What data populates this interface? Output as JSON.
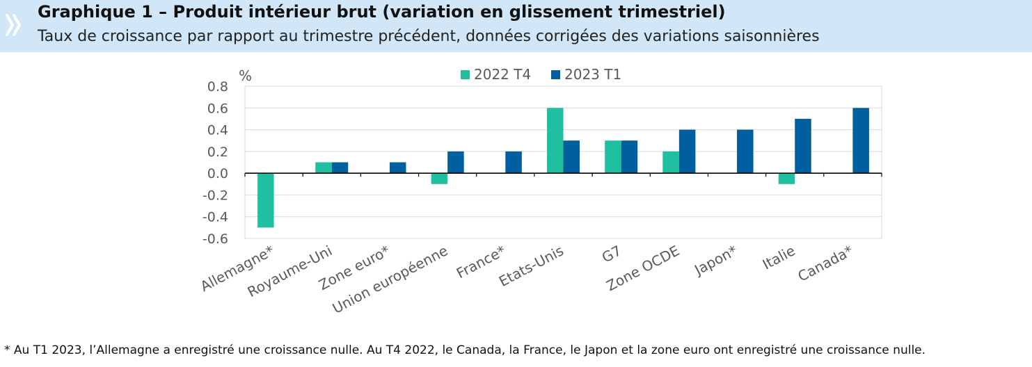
{
  "header": {
    "title": "Graphique 1 – Produit intérieur brut (variation en glissement trimestriel)",
    "subtitle": "Taux de croissance par rapport au trimestre précédent, données corrigées des variations saisonnières",
    "icon": "double-chevron-icon"
  },
  "footnote": "* Au T1 2023, l’Allemagne a enregistré une croissance nulle. Au T4 2022, le Canada, la France, le Japon et la zone euro ont enregistré une croissance nulle.",
  "colors": {
    "header_bg": "#d1e7f7",
    "series_2022T4": "#1fbfa0",
    "series_2023T1": "#005f9e",
    "grid": "#d9d9d9",
    "axis_text": "#595959"
  },
  "chart_data": {
    "type": "bar",
    "ylabel": "%",
    "ylim": [
      -0.6,
      0.8
    ],
    "yticks": [
      "0.8",
      "0.6",
      "0.4",
      "0.2",
      "0.0",
      "-0.2",
      "-0.4",
      "-0.6"
    ],
    "ytick_values": [
      0.8,
      0.6,
      0.4,
      0.2,
      0.0,
      -0.2,
      -0.4,
      -0.6
    ],
    "grid": true,
    "legend_position": "top",
    "categories": [
      "Allemagne*",
      "Royaume-Uni",
      "Zone euro*",
      "Union européenne",
      "France*",
      "Etats-Unis",
      "G7",
      "Zone OCDE",
      "Japon*",
      "Italie",
      "Canada*"
    ],
    "series": [
      {
        "name": "2022 T4",
        "values": [
          -0.5,
          0.1,
          0.0,
          -0.1,
          0.0,
          0.6,
          0.3,
          0.2,
          0.0,
          -0.1,
          0.0
        ]
      },
      {
        "name": "2023 T1",
        "values": [
          0.0,
          0.1,
          0.1,
          0.2,
          0.2,
          0.3,
          0.3,
          0.4,
          0.4,
          0.5,
          0.6
        ]
      }
    ]
  }
}
